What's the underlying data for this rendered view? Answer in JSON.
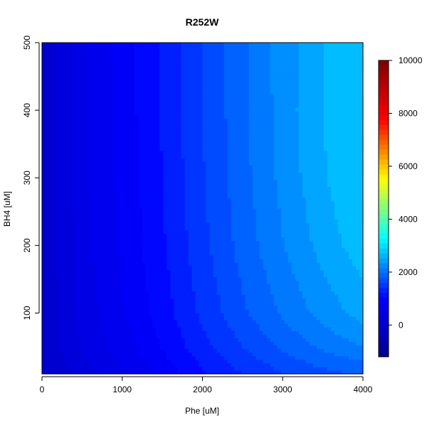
{
  "chart_data": {
    "type": "heatmap",
    "title": "R252W",
    "xlabel": "Phe [uM]",
    "ylabel": "BH4 [uM]",
    "xlim": [
      0,
      4000
    ],
    "ylim": [
      10,
      500
    ],
    "x_ticks": [
      0,
      1000,
      2000,
      3000,
      4000
    ],
    "y_ticks": [
      100,
      200,
      300,
      400,
      500
    ],
    "colorbar": {
      "range": [
        -1200,
        10000
      ],
      "ticks": [
        0,
        2000,
        4000,
        6000,
        8000,
        10000
      ],
      "palette": "jet",
      "colors": [
        "#00008F",
        "#0000FF",
        "#00FFFF",
        "#FFFF00",
        "#FF0000",
        "#800000"
      ]
    },
    "grid": false,
    "contour_levels": [
      0,
      200,
      400,
      600,
      800,
      1000,
      1200,
      1400,
      1600,
      1800,
      2000,
      2200,
      2400,
      2600
    ],
    "x": [
      0,
      500,
      1000,
      1500,
      2000,
      2500,
      3000,
      3500,
      4000
    ],
    "y": [
      10,
      50,
      100,
      200,
      300,
      400,
      500
    ],
    "z": [
      [
        0,
        0,
        0,
        0,
        0,
        0,
        0
      ],
      [
        300,
        420,
        480,
        520,
        540,
        550,
        560
      ],
      [
        560,
        700,
        780,
        840,
        860,
        880,
        890
      ],
      [
        870,
        1010,
        1100,
        1170,
        1200,
        1220,
        1230
      ],
      [
        1160,
        1330,
        1450,
        1540,
        1580,
        1600,
        1610
      ],
      [
        1400,
        1600,
        1760,
        1880,
        1930,
        1950,
        1960
      ],
      [
        1590,
        1840,
        2030,
        2190,
        2260,
        2290,
        2290
      ],
      [
        1730,
        2040,
        2280,
        2480,
        2570,
        2600,
        2590
      ],
      [
        1830,
        2200,
        2480,
        2720,
        2830,
        2860,
        2840
      ]
    ]
  }
}
